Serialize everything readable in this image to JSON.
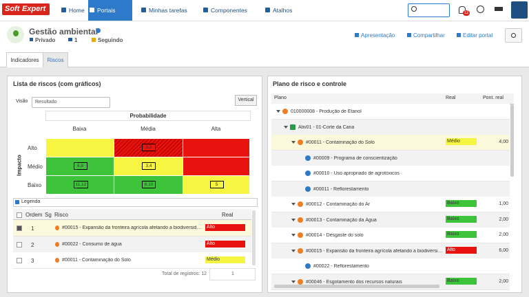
{
  "nav": {
    "logo_a": "Soft",
    "logo_b": "Expert",
    "items": [
      "Home",
      "Portais",
      "Minhas tarefas",
      "Componentes",
      "Atalhos"
    ],
    "active": 1,
    "notifications": 12
  },
  "header": {
    "title": "Gestão ambiental",
    "visibility": "Privado",
    "members": 1,
    "status": "Seguindo",
    "actions": [
      "Apresentação",
      "Compartilhar",
      "Editar portal"
    ]
  },
  "tabs": {
    "items": [
      "Indicadores",
      "Riscos"
    ],
    "active": 1
  },
  "risk_list": {
    "title": "Lista de riscos (com gráficos)",
    "view_label": "Visão",
    "view_value": "Resultado",
    "button": "Vertical",
    "matrix": {
      "x_title": "Probabilidade",
      "y_title": "Impacto",
      "columns": [
        "Baixa",
        "Média",
        "Alta"
      ],
      "rows": [
        "Alto",
        "Médio",
        "Baixo"
      ],
      "cells": [
        [
          {
            "fill": "#f6f542"
          },
          {
            "fill": "#e8130f",
            "hatched": true,
            "label": "3,2"
          },
          {
            "fill": "#e8130f"
          }
        ],
        [
          {
            "fill": "#3ec43b",
            "label": "6,8"
          },
          {
            "fill": "#f6f542",
            "label": "3,4"
          },
          {
            "fill": "#e8130f"
          }
        ],
        [
          {
            "fill": "#3ec43b",
            "label": "11,12"
          },
          {
            "fill": "#3ec43b",
            "label": "8,10"
          },
          {
            "fill": "#f6f542",
            "label": "5"
          }
        ]
      ]
    },
    "legend": "Legenda",
    "table": {
      "columns": [
        "Ordem",
        "Sg",
        "Risco",
        "Real"
      ],
      "rows": [
        {
          "order": 1,
          "risk": "#00015 - Expansão da fronteira agrícola afetando a biodiversidade",
          "real": "Alto",
          "color": "#e8130f",
          "checked": true
        },
        {
          "order": 2,
          "risk": "#00022 - Consumo de água",
          "real": "Alto",
          "color": "#e8130f"
        },
        {
          "order": 3,
          "risk": "#00011 - Contaminação do Solo",
          "real": "Médio",
          "color": "#f6f542"
        }
      ],
      "total": "Total de registros: 12",
      "page": 1
    }
  },
  "plan": {
    "title": "Plano de risco e controle",
    "columns": [
      "Plano",
      "Real",
      "Pont. real"
    ],
    "rows": [
      {
        "level": 0,
        "label": "010000008 - Produção de Etanol"
      },
      {
        "level": 1,
        "label": "Ativ01 - 01-Corte da Cana"
      },
      {
        "level": 2,
        "label": "#00011 - Contaminação do Solo",
        "real": "Médio",
        "color": "#f6f542",
        "score": "4,00",
        "selected": true
      },
      {
        "level": 3,
        "label": "#00009 - Programa de conscientização"
      },
      {
        "level": 3,
        "label": "#00010 - Uso apropriado de agrotóxicos"
      },
      {
        "level": 3,
        "label": "#00011 - Reflorestamento"
      },
      {
        "level": 2,
        "label": "#00012 - Contaminação do Ar",
        "real": "Baixo",
        "color": "#3ec43b",
        "score": "1,00"
      },
      {
        "level": 2,
        "label": "#00013 - Contaminação da Água",
        "real": "Baixo",
        "color": "#3ec43b",
        "score": "2,00"
      },
      {
        "level": 2,
        "label": "#00014 - Desgaste do solo",
        "real": "Baixo",
        "color": "#3ec43b",
        "score": "2,00"
      },
      {
        "level": 2,
        "label": "#00015 - Expansão da fronteira agrícola afetando a biodiversidade",
        "real": "Alto",
        "color": "#e8130f",
        "score": "6,00"
      },
      {
        "level": 3,
        "label": "#00022 - Reflorestamento"
      },
      {
        "level": 2,
        "label": "#00046 - Esgotamento dos recursos naturais",
        "real": "Baixo",
        "color": "#3ec43b",
        "score": "2,00"
      }
    ]
  }
}
